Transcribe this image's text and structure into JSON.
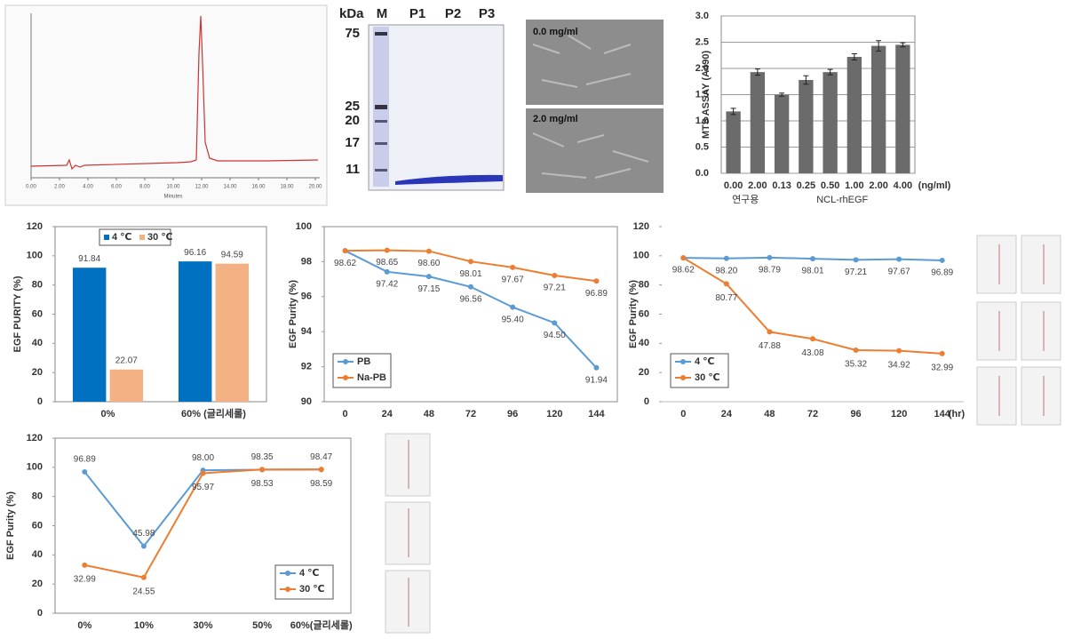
{
  "chromatogram": {
    "xlabel": "Minutes",
    "xlim": [
      0,
      20
    ],
    "xticks": [
      {
        "value": 0,
        "label": "0.00"
      },
      {
        "value": 2,
        "label": "2.00"
      },
      {
        "value": 4,
        "label": "4.00"
      },
      {
        "value": 6,
        "label": "6.00"
      },
      {
        "value": 8,
        "label": "8.00"
      },
      {
        "value": 10,
        "label": "10.00"
      },
      {
        "value": 12,
        "label": "12.00"
      },
      {
        "value": 14,
        "label": "14.00"
      },
      {
        "value": 16,
        "label": "16.00"
      },
      {
        "value": 18,
        "label": "18.00"
      },
      {
        "value": 20,
        "label": "20.00"
      }
    ]
  },
  "gel": {
    "unit": "kDa",
    "lanes": [
      "M",
      "P1",
      "P2",
      "P3"
    ],
    "markers": [
      "75",
      "25",
      "20",
      "17",
      "11"
    ]
  },
  "cells": [
    "0.0 mg/ml",
    "2.0 mg/ml"
  ],
  "chart_data": [
    {
      "type": "bar",
      "ylabel": "MTS ASSAY (A490)",
      "categories": [
        "0.00",
        "2.00",
        "0.13",
        "0.25",
        "0.50",
        "1.00",
        "2.00",
        "4.00"
      ],
      "x_unit": "(ng/ml)",
      "groups": [
        "연구용",
        "NCL-rhEGF"
      ],
      "values": [
        1.18,
        1.93,
        1.5,
        1.78,
        1.93,
        2.22,
        2.43,
        2.45
      ],
      "errors": [
        0.06,
        0.06,
        0.03,
        0.08,
        0.05,
        0.06,
        0.1,
        0.04
      ],
      "color": "#6b6b6b",
      "ylim": [
        0,
        3
      ],
      "yticks": [
        {
          "value": 0,
          "label": "0.0"
        },
        0.5,
        {
          "value": 1,
          "label": "1.0"
        },
        1.5,
        {
          "value": 2,
          "label": "2.0"
        },
        2.5,
        {
          "value": 3,
          "label": "3.0"
        }
      ],
      "grid": true,
      "frame": true
    },
    {
      "type": "grouped-bar",
      "ylabel": "EGF PURITY (%)",
      "categories": [
        "0%",
        "60% (글리세롤)"
      ],
      "series": [
        {
          "name": "4 ℃",
          "color": "#0070c0",
          "values": [
            91.84,
            96.16
          ]
        },
        {
          "name": "30 ℃",
          "color": "#f4b183",
          "values": [
            22.07,
            94.59
          ]
        }
      ],
      "ylim": [
        0,
        120
      ],
      "yticks": [
        0,
        20,
        40,
        60,
        80,
        100,
        120
      ],
      "grid": false,
      "frame": true,
      "legend": "top"
    },
    {
      "type": "line",
      "ylabel": "EGF Purity (%)",
      "categories": [
        "0",
        "24",
        "48",
        "72",
        "96",
        "120",
        "144"
      ],
      "series": [
        {
          "name": "PB",
          "color": "#5b9bd5",
          "values": [
            98.62,
            97.42,
            97.15,
            96.56,
            95.4,
            94.5,
            91.94
          ],
          "value_labels": [
            "98.62",
            "97.42",
            "97.15",
            "96.56",
            "95.40",
            "94.50",
            "91.94"
          ]
        },
        {
          "name": "Na-PB",
          "color": "#ed7d31",
          "values": [
            98.62,
            98.65,
            98.6,
            98.01,
            97.67,
            97.21,
            96.89
          ],
          "value_labels": [
            null,
            "98.65",
            "98.60",
            "98.01",
            "97.67",
            "97.21",
            "96.89"
          ]
        }
      ],
      "ylim": [
        90,
        100
      ],
      "yticks": [
        90,
        92,
        94,
        96,
        98,
        100
      ],
      "grid": false,
      "frame": true,
      "legend": "bottom-left"
    },
    {
      "type": "line",
      "ylabel": "EGF Purity (%)",
      "categories": [
        "0",
        "24",
        "48",
        "72",
        "96",
        "120",
        "144"
      ],
      "x_unit": "(hr)",
      "series": [
        {
          "name": "4 ℃",
          "color": "#5b9bd5",
          "values": [
            98.62,
            98.2,
            98.79,
            98.01,
            97.21,
            97.67,
            96.89
          ],
          "value_labels": [
            "98.62",
            "98.20",
            "98.79",
            "98.01",
            "97.21",
            "97.67",
            "96.89"
          ]
        },
        {
          "name": "30 ℃",
          "color": "#ed7d31",
          "values": [
            98.62,
            80.77,
            47.88,
            43.08,
            35.32,
            34.92,
            32.99
          ],
          "value_labels": [
            null,
            "80.77",
            "47.88",
            "43.08",
            "35.32",
            "34.92",
            "32.99"
          ]
        }
      ],
      "ylim": [
        0,
        120
      ],
      "yticks": [
        0,
        20,
        40,
        60,
        80,
        100,
        120
      ],
      "grid": false,
      "frame": false,
      "legend": "bottom-left"
    },
    {
      "type": "line",
      "ylabel": "EGF Purity (%)",
      "categories": [
        "0%",
        "10%",
        "30%",
        "50%",
        "60%(글리세롤)"
      ],
      "series": [
        {
          "name": "4 ℃",
          "color": "#5b9bd5",
          "values": [
            96.89,
            45.98,
            98.0,
            98.35,
            98.47
          ],
          "value_labels": [
            "96.89",
            "45.98",
            "98.00",
            "98.35",
            "98.47"
          ]
        },
        {
          "name": "30 ℃",
          "color": "#ed7d31",
          "values": [
            32.99,
            24.55,
            95.97,
            98.53,
            98.59
          ],
          "value_labels": [
            "32.99",
            "24.55",
            "95.97",
            "98.53",
            "98.59"
          ]
        }
      ],
      "ylim": [
        0,
        120
      ],
      "yticks": [
        0,
        20,
        40,
        60,
        80,
        100,
        120
      ],
      "grid": false,
      "frame": true,
      "legend": "bottom-right"
    }
  ]
}
